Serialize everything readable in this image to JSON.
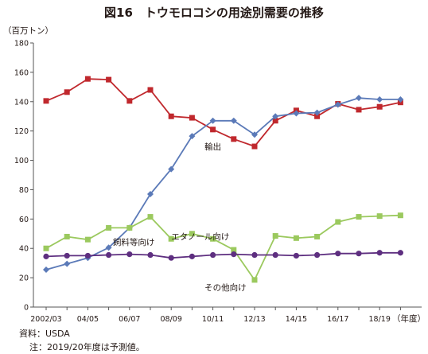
{
  "chart_data": {
    "type": "line",
    "title": "図16　トウモロコシの用途別需要の推移",
    "ylabel": "（百万トン）",
    "xlabel": "（年度）",
    "ylim": [
      0,
      180
    ],
    "yticks": [
      "0",
      "20",
      "40",
      "60",
      "80",
      "100",
      "120",
      "140",
      "160",
      "180"
    ],
    "x": [
      "2002/03",
      "03/04",
      "04/05",
      "05/06",
      "06/07",
      "07/08",
      "08/09",
      "09/10",
      "10/11",
      "11/12",
      "12/13",
      "13/14",
      "14/15",
      "15/16",
      "16/17",
      "17/18",
      "18/19",
      "19/20"
    ],
    "xtick_labels": [
      "2002/03",
      "",
      "04/05",
      "",
      "06/07",
      "",
      "08/09",
      "",
      "10/11",
      "",
      "12/13",
      "",
      "14/15",
      "",
      "16/17",
      "",
      "18/19",
      ""
    ],
    "grid": false,
    "series": [
      {
        "name": "飼料等向け",
        "color": "#c0282d",
        "marker": "square",
        "values": [
          140.5,
          146.5,
          155.5,
          155.0,
          140.5,
          148.0,
          130.0,
          129.0,
          121.0,
          114.5,
          109.5,
          127.0,
          134.0,
          130.0,
          138.5,
          134.5,
          136.5,
          139.5
        ]
      },
      {
        "name": "エタノール向け",
        "color": "#5b7ab8",
        "marker": "diamond",
        "values": [
          25.5,
          29.5,
          33.5,
          40.5,
          54.0,
          77.0,
          94.0,
          116.5,
          127.0,
          127.0,
          117.5,
          130.0,
          132.0,
          132.5,
          138.0,
          142.5,
          141.5,
          141.5
        ]
      },
      {
        "name": "輸出",
        "color": "#9bc95e",
        "marker": "square",
        "values": [
          40.0,
          48.0,
          46.0,
          54.0,
          54.0,
          61.5,
          46.5,
          50.0,
          46.5,
          39.0,
          18.5,
          48.5,
          47.0,
          48.0,
          58.0,
          61.5,
          62.0,
          62.5
        ]
      },
      {
        "name": "その他向け",
        "color": "#5e2f80",
        "marker": "circle",
        "values": [
          34.5,
          35.0,
          35.0,
          35.5,
          36.0,
          35.5,
          33.5,
          34.5,
          35.5,
          36.0,
          35.5,
          35.5,
          35.0,
          35.5,
          36.5,
          36.5,
          37.0,
          37.0
        ]
      }
    ]
  },
  "footnotes": {
    "source": "資料：USDA",
    "note": "注：2019/20年度は予測値。"
  }
}
